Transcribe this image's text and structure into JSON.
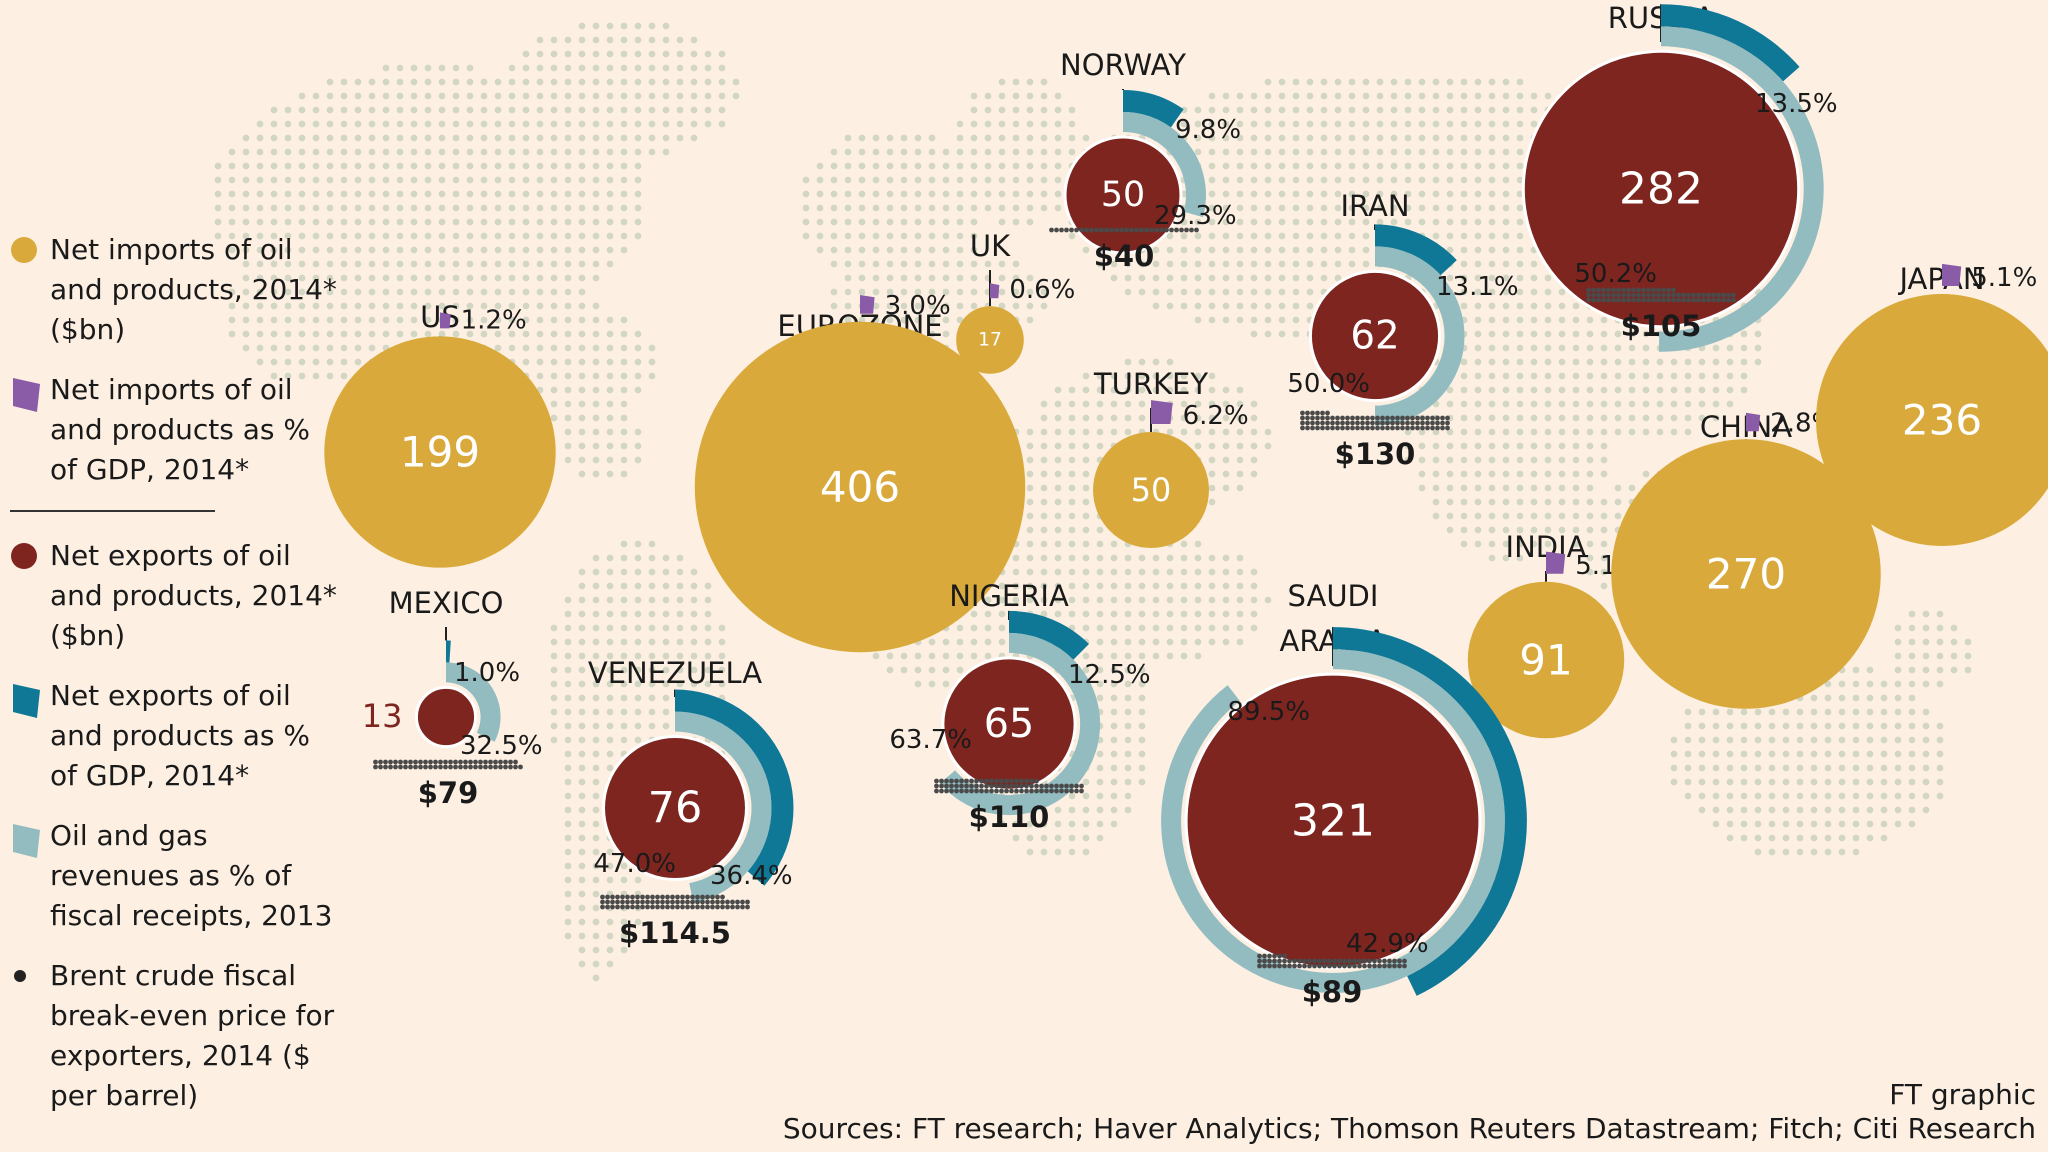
{
  "legend": {
    "imports_bn": "Net imports of oil and products, 2014* ($bn)",
    "imports_gdp": "Net imports of oil and products as % of GDP, 2014*",
    "exports_bn": "Net exports of oil and products, 2014* ($bn)",
    "exports_gdp": "Net exports of oil and products as % of GDP, 2014*",
    "revenues": "Oil and gas revenues as % of fiscal receipts, 2013",
    "breakeven": "Brent crude fiscal break-even price for exporters, 2014 ($ per barrel)"
  },
  "footer": {
    "credit": "FT graphic",
    "sources": "Sources: FT research; Haver Analytics; Thomson Reuters Datastream; Fitch; Citi Research"
  },
  "colors": {
    "background": "#fdf0e3",
    "map_dots": "#d2d6c3",
    "imports": "#d9aa3b",
    "imports_gdp": "#8a5ca8",
    "exports": "#7e2520",
    "exports_gdp": "#0e7896",
    "revenues": "#93bcc1",
    "breakeven_dots": "#4a4a4a"
  },
  "chart_data": {
    "type": "bubble-map",
    "title": "",
    "importers": [
      {
        "name": "US",
        "value_bn": 199,
        "gdp_pct": 1.2,
        "gdp_label": "1.2%"
      },
      {
        "name": "EUROZONE",
        "value_bn": 406,
        "gdp_pct": 3.0,
        "gdp_label": "3.0%"
      },
      {
        "name": "UK",
        "value_bn": 17,
        "gdp_pct": 0.6,
        "gdp_label": "0.6%"
      },
      {
        "name": "TURKEY",
        "value_bn": 50,
        "gdp_pct": 6.2,
        "gdp_label": "6.2%"
      },
      {
        "name": "INDIA",
        "value_bn": 91,
        "gdp_pct": 5.1,
        "gdp_label": "5.1%"
      },
      {
        "name": "CHINA",
        "value_bn": 270,
        "gdp_pct": 2.8,
        "gdp_label": "2.8%"
      },
      {
        "name": "JAPAN",
        "value_bn": 236,
        "gdp_pct": 5.1,
        "gdp_label": "5.1%"
      }
    ],
    "exporters": [
      {
        "name": "MEXICO",
        "value_bn": 13,
        "gdp_pct": 1.0,
        "gdp_label": "1.0%",
        "revenue_pct": 32.5,
        "revenue_label": "32.5%",
        "breakeven": 79,
        "breakeven_label": "$79"
      },
      {
        "name": "VENEZUELA",
        "value_bn": 76,
        "gdp_pct": 36.4,
        "gdp_label": "36.4%",
        "revenue_pct": 47.0,
        "revenue_label": "47.0%",
        "breakeven": 114.5,
        "breakeven_label": "$114.5"
      },
      {
        "name": "NORWAY",
        "value_bn": 50,
        "gdp_pct": 9.8,
        "gdp_label": "9.8%",
        "revenue_pct": 29.3,
        "revenue_label": "29.3%",
        "breakeven": 40,
        "breakeven_label": "$40"
      },
      {
        "name": "NIGERIA",
        "value_bn": 65,
        "gdp_pct": 12.5,
        "gdp_label": "12.5%",
        "revenue_pct": 63.7,
        "revenue_label": "63.7%",
        "breakeven": 110,
        "breakeven_label": "$110"
      },
      {
        "name": "SAUDI ARABIA",
        "value_bn": 321,
        "gdp_pct": 42.9,
        "gdp_label": "42.9%",
        "revenue_pct": 89.5,
        "revenue_label": "89.5%",
        "breakeven": 89,
        "breakeven_label": "$89"
      },
      {
        "name": "IRAN",
        "value_bn": 62,
        "gdp_pct": 13.1,
        "gdp_label": "13.1%",
        "revenue_pct": 50.0,
        "revenue_label": "50.0%",
        "breakeven": 130,
        "breakeven_label": "$130"
      },
      {
        "name": "RUSSIA",
        "value_bn": 282,
        "gdp_pct": 13.5,
        "gdp_label": "13.5%",
        "revenue_pct": 50.2,
        "revenue_label": "50.2%",
        "breakeven": 105,
        "breakeven_label": "$105"
      }
    ]
  }
}
